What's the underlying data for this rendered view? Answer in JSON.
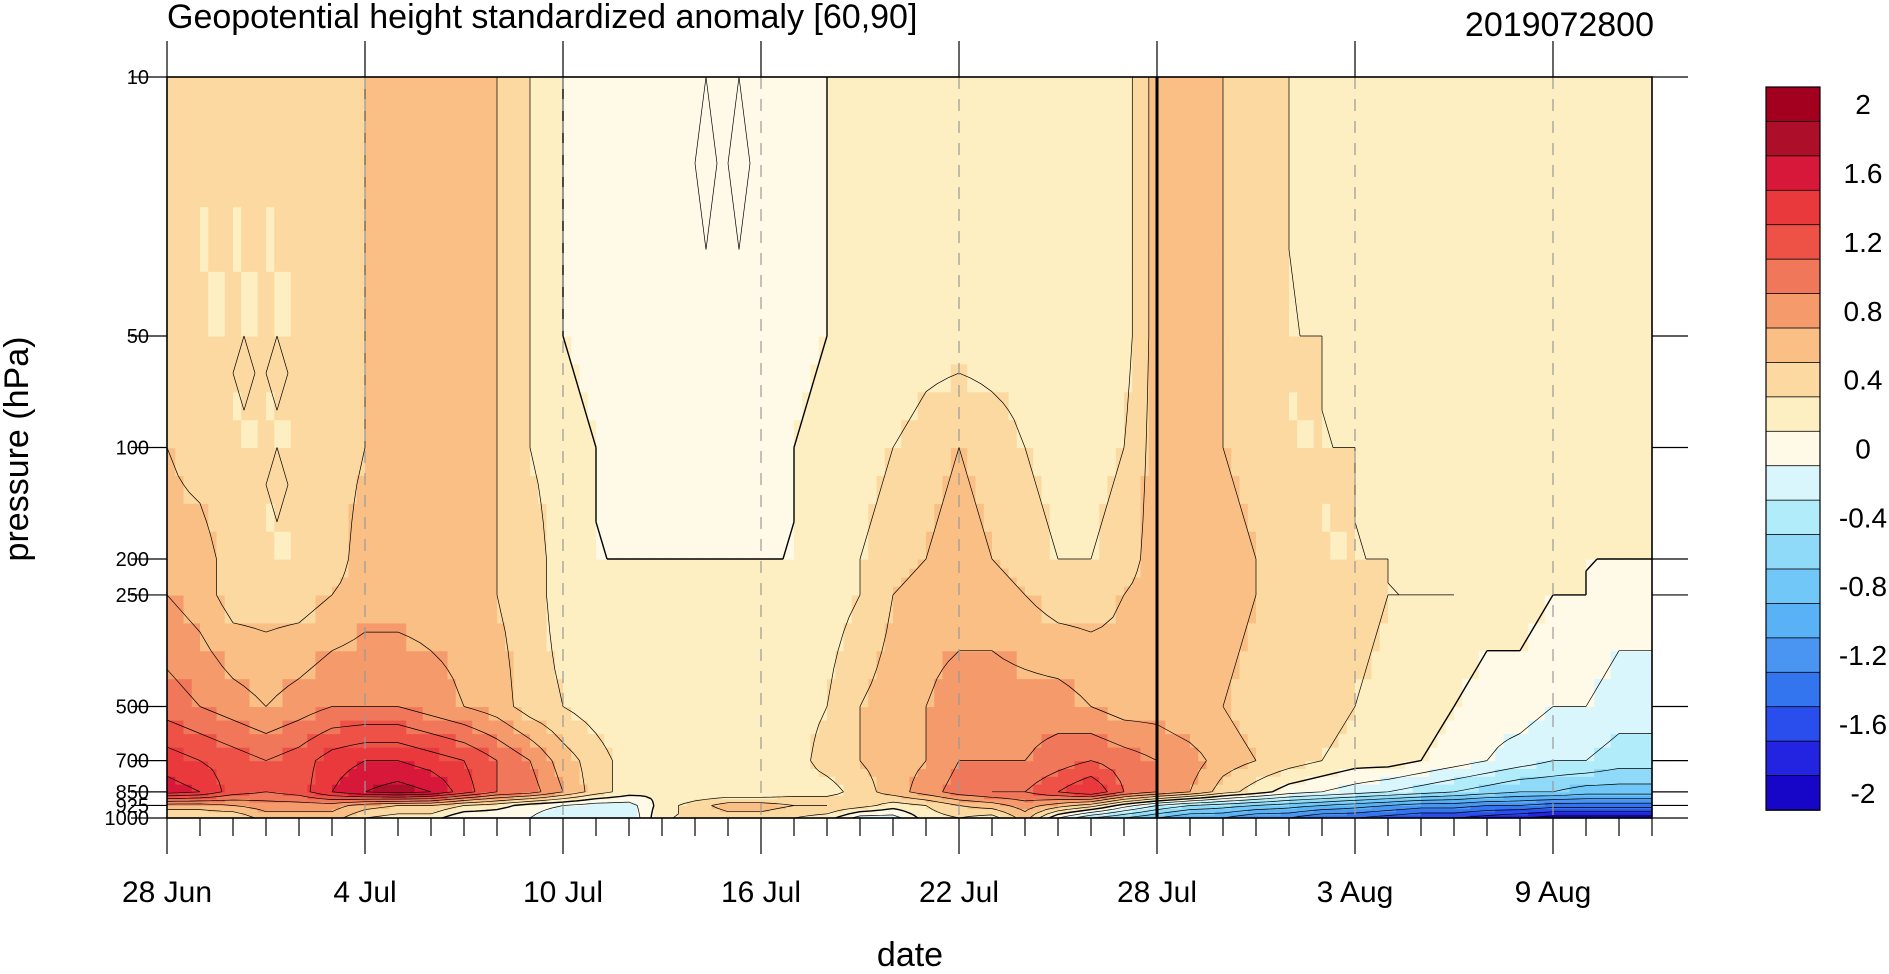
{
  "chart_data": {
    "type": "heatmap",
    "title": "Geopotential height standardized anomaly [60,90]",
    "subtitle": "2019072800",
    "xlabel": "date",
    "ylabel": "pressure (hPa)",
    "x_tick_labels": [
      "28 Jun",
      "4 Jul",
      "10 Jul",
      "16 Jul",
      "22 Jul",
      "28 Jul",
      "3 Aug",
      "9 Aug"
    ],
    "y_tick_labels": [
      "10",
      "50",
      "100",
      "200",
      "250",
      "500",
      "700",
      "850",
      "925",
      "1000"
    ],
    "y_ticks": [
      10,
      50,
      100,
      200,
      250,
      500,
      700,
      850,
      925,
      1000
    ],
    "y_scale": "log",
    "y_reversed": true,
    "ylim": [
      1000,
      10
    ],
    "dates": [
      "2019-06-28",
      "2019-06-29",
      "2019-06-30",
      "2019-07-01",
      "2019-07-02",
      "2019-07-03",
      "2019-07-04",
      "2019-07-05",
      "2019-07-06",
      "2019-07-07",
      "2019-07-08",
      "2019-07-09",
      "2019-07-10",
      "2019-07-11",
      "2019-07-12",
      "2019-07-13",
      "2019-07-14",
      "2019-07-15",
      "2019-07-16",
      "2019-07-17",
      "2019-07-18",
      "2019-07-19",
      "2019-07-20",
      "2019-07-21",
      "2019-07-22",
      "2019-07-23",
      "2019-07-24",
      "2019-07-25",
      "2019-07-26",
      "2019-07-27",
      "2019-07-28",
      "2019-07-29",
      "2019-07-30",
      "2019-07-31",
      "2019-08-01",
      "2019-08-02",
      "2019-08-03",
      "2019-08-04",
      "2019-08-05",
      "2019-08-06",
      "2019-08-07",
      "2019-08-08",
      "2019-08-09",
      "2019-08-10",
      "2019-08-11",
      "2019-08-12"
    ],
    "levels": [
      1000,
      925,
      850,
      700,
      500,
      250,
      200,
      100,
      50,
      10
    ],
    "values": [
      [
        0.2,
        0.2,
        0.2,
        0.5,
        0.5,
        0.5,
        0.2,
        0.1,
        0.1,
        -0.2,
        -0.2,
        -0.2,
        -0.4,
        -0.4,
        -0.4,
        0.2,
        0.2,
        0.3,
        0.3,
        0.2,
        0.1,
        -0.3,
        -0.3,
        0.1,
        0.2,
        0.1,
        0.5,
        -0.2,
        -0.6,
        -0.8,
        -1.0,
        -1.2,
        -1.2,
        -1.4,
        -1.4,
        -1.6,
        -1.6,
        -1.7,
        -1.8,
        -1.8,
        -1.9,
        -2.0,
        -2.1,
        -2.1,
        -2.1,
        -2.1
      ],
      [
        0.5,
        0.5,
        0.6,
        0.7,
        0.7,
        0.7,
        0.5,
        0.4,
        0.4,
        0.2,
        0.1,
        -0.1,
        -0.2,
        -0.3,
        -0.3,
        0.1,
        0.3,
        0.5,
        0.5,
        0.4,
        0.4,
        0.3,
        0.1,
        0.2,
        0.4,
        0.5,
        0.7,
        0.5,
        0.3,
        -0.1,
        -0.4,
        -0.6,
        -0.7,
        -0.8,
        -0.9,
        -1.0,
        -1.1,
        -1.2,
        -1.3,
        -1.3,
        -1.4,
        -1.4,
        -1.5,
        -1.5,
        -1.5,
        -1.5
      ],
      [
        1.5,
        1.4,
        1.1,
        1.0,
        1.1,
        1.4,
        1.6,
        1.7,
        1.6,
        1.3,
        1.0,
        0.9,
        0.6,
        0.3,
        0.1,
        0.0,
        0.0,
        0.0,
        0.0,
        0.1,
        0.1,
        0.3,
        0.5,
        0.7,
        0.9,
        1.0,
        1.0,
        1.2,
        1.4,
        1.0,
        0.8,
        0.6,
        0.3,
        0.1,
        -0.1,
        -0.2,
        -0.3,
        -0.4,
        -0.5,
        -0.6,
        -0.7,
        -0.8,
        -0.8,
        -0.9,
        -0.9,
        -0.9
      ],
      [
        1.3,
        1.2,
        1.1,
        1.0,
        1.1,
        1.3,
        1.4,
        1.4,
        1.3,
        1.2,
        1.0,
        0.8,
        0.5,
        0.3,
        0.1,
        0.0,
        0.0,
        0.0,
        0.0,
        0.1,
        0.3,
        0.4,
        0.5,
        0.6,
        0.8,
        0.8,
        0.8,
        0.9,
        1.0,
        0.9,
        0.8,
        0.7,
        0.5,
        0.4,
        0.3,
        0.2,
        0.1,
        0.1,
        0.0,
        -0.1,
        -0.2,
        -0.3,
        -0.4,
        -0.4,
        -0.5,
        -0.5
      ],
      [
        0.9,
        0.8,
        0.7,
        0.6,
        0.7,
        0.8,
        0.8,
        0.8,
        0.7,
        0.6,
        0.5,
        0.3,
        0.2,
        0.1,
        0.0,
        0.0,
        0.0,
        0.0,
        0.0,
        0.1,
        0.2,
        0.4,
        0.5,
        0.6,
        0.7,
        0.7,
        0.7,
        0.7,
        0.6,
        0.5,
        0.5,
        0.4,
        0.4,
        0.3,
        0.3,
        0.3,
        0.2,
        0.1,
        0.1,
        0.0,
        -0.1,
        -0.1,
        -0.2,
        -0.2,
        -0.3,
        -0.3
      ],
      [
        0.6,
        0.5,
        0.3,
        0.3,
        0.3,
        0.4,
        0.5,
        0.5,
        0.5,
        0.5,
        0.4,
        0.3,
        0.1,
        0.0,
        0.0,
        0.0,
        0.0,
        0.0,
        0.0,
        0.0,
        0.1,
        0.2,
        0.4,
        0.5,
        0.5,
        0.5,
        0.4,
        0.3,
        0.3,
        0.4,
        0.5,
        0.5,
        0.5,
        0.4,
        0.3,
        0.3,
        0.3,
        0.2,
        0.2,
        0.2,
        0.1,
        0.1,
        0.0,
        0.0,
        -0.1,
        -0.1
      ],
      [
        0.5,
        0.5,
        0.3,
        0.2,
        0.2,
        0.3,
        0.5,
        0.5,
        0.5,
        0.5,
        0.4,
        0.3,
        0.1,
        0.0,
        0.0,
        0.0,
        0.0,
        0.0,
        0.0,
        0.0,
        0.1,
        0.2,
        0.3,
        0.4,
        0.5,
        0.4,
        0.3,
        0.2,
        0.2,
        0.3,
        0.5,
        0.5,
        0.5,
        0.4,
        0.3,
        0.2,
        0.2,
        0.2,
        0.1,
        0.1,
        0.1,
        0.0,
        0.0,
        0.0,
        0.0,
        0.0
      ],
      [
        0.4,
        0.3,
        0.2,
        0.2,
        0.2,
        0.3,
        0.4,
        0.5,
        0.5,
        0.5,
        0.4,
        0.2,
        0.1,
        0.0,
        -0.1,
        -0.1,
        -0.1,
        -0.1,
        -0.1,
        0.0,
        0.1,
        0.1,
        0.2,
        0.3,
        0.4,
        0.3,
        0.2,
        0.1,
        0.1,
        0.2,
        0.5,
        0.5,
        0.4,
        0.3,
        0.2,
        0.2,
        0.2,
        0.1,
        0.1,
        0.1,
        0.1,
        0.0,
        0.0,
        0.0,
        0.0,
        0.0
      ],
      [
        0.3,
        0.2,
        0.2,
        0.2,
        0.2,
        0.3,
        0.4,
        0.5,
        0.5,
        0.5,
        0.4,
        0.2,
        0.0,
        -0.1,
        -0.1,
        -0.1,
        -0.2,
        -0.2,
        -0.2,
        -0.1,
        0.0,
        0.0,
        0.0,
        0.1,
        0.1,
        0.1,
        0.1,
        0.0,
        0.0,
        0.1,
        0.5,
        0.5,
        0.4,
        0.3,
        0.2,
        0.2,
        0.1,
        0.1,
        0.1,
        0.0,
        0.0,
        0.0,
        0.0,
        0.0,
        0.0,
        0.0
      ],
      [
        0.2,
        0.2,
        0.2,
        0.2,
        0.2,
        0.3,
        0.4,
        0.5,
        0.5,
        0.5,
        0.4,
        0.2,
        0.0,
        -0.1,
        -0.1,
        -0.1,
        -0.2,
        -0.2,
        -0.2,
        -0.1,
        0.0,
        0.0,
        0.0,
        0.0,
        0.0,
        0.0,
        0.0,
        0.0,
        0.0,
        0.1,
        0.5,
        0.5,
        0.4,
        0.3,
        0.2,
        0.1,
        0.1,
        0.1,
        0.0,
        0.0,
        0.0,
        0.0,
        0.0,
        0.0,
        0.0,
        0.0
      ]
    ],
    "contour_levels": [
      -2.2,
      -2.0,
      -1.8,
      -1.6,
      -1.4,
      -1.2,
      -1.0,
      -0.8,
      -0.6,
      -0.4,
      -0.2,
      0.0,
      0.2,
      0.4,
      0.6,
      0.8,
      1.0,
      1.2,
      1.4,
      1.6,
      1.8,
      2.0,
      2.2
    ],
    "colorbar_labels": [
      "2",
      "1.6",
      "1.2",
      "0.8",
      "0.4",
      "0",
      "-0.4",
      "-0.8",
      "-1.2",
      "-1.6",
      "-2"
    ],
    "colorbar_label_values": [
      2.0,
      1.6,
      1.2,
      0.8,
      0.4,
      0.0,
      -0.4,
      -0.8,
      -1.2,
      -1.6,
      -2.0
    ],
    "colorbar_colors": [
      "#1806c8",
      "#2323e2",
      "#2a4ded",
      "#3374ef",
      "#4a94f2",
      "#5ab2f6",
      "#71c8f8",
      "#8fdaf8",
      "#b0ecfa",
      "#d8f6fb",
      "#fffae8",
      "#fdefc2",
      "#fbd9a1",
      "#f9bf85",
      "#f59a6b",
      "#f1775a",
      "#ee5247",
      "#ea393d",
      "#d8183a",
      "#ad0f2a",
      "#a3001f"
    ],
    "current_date": "2019-07-28",
    "grid": "dashed vertical date lines",
    "legend": "right colorbar"
  }
}
